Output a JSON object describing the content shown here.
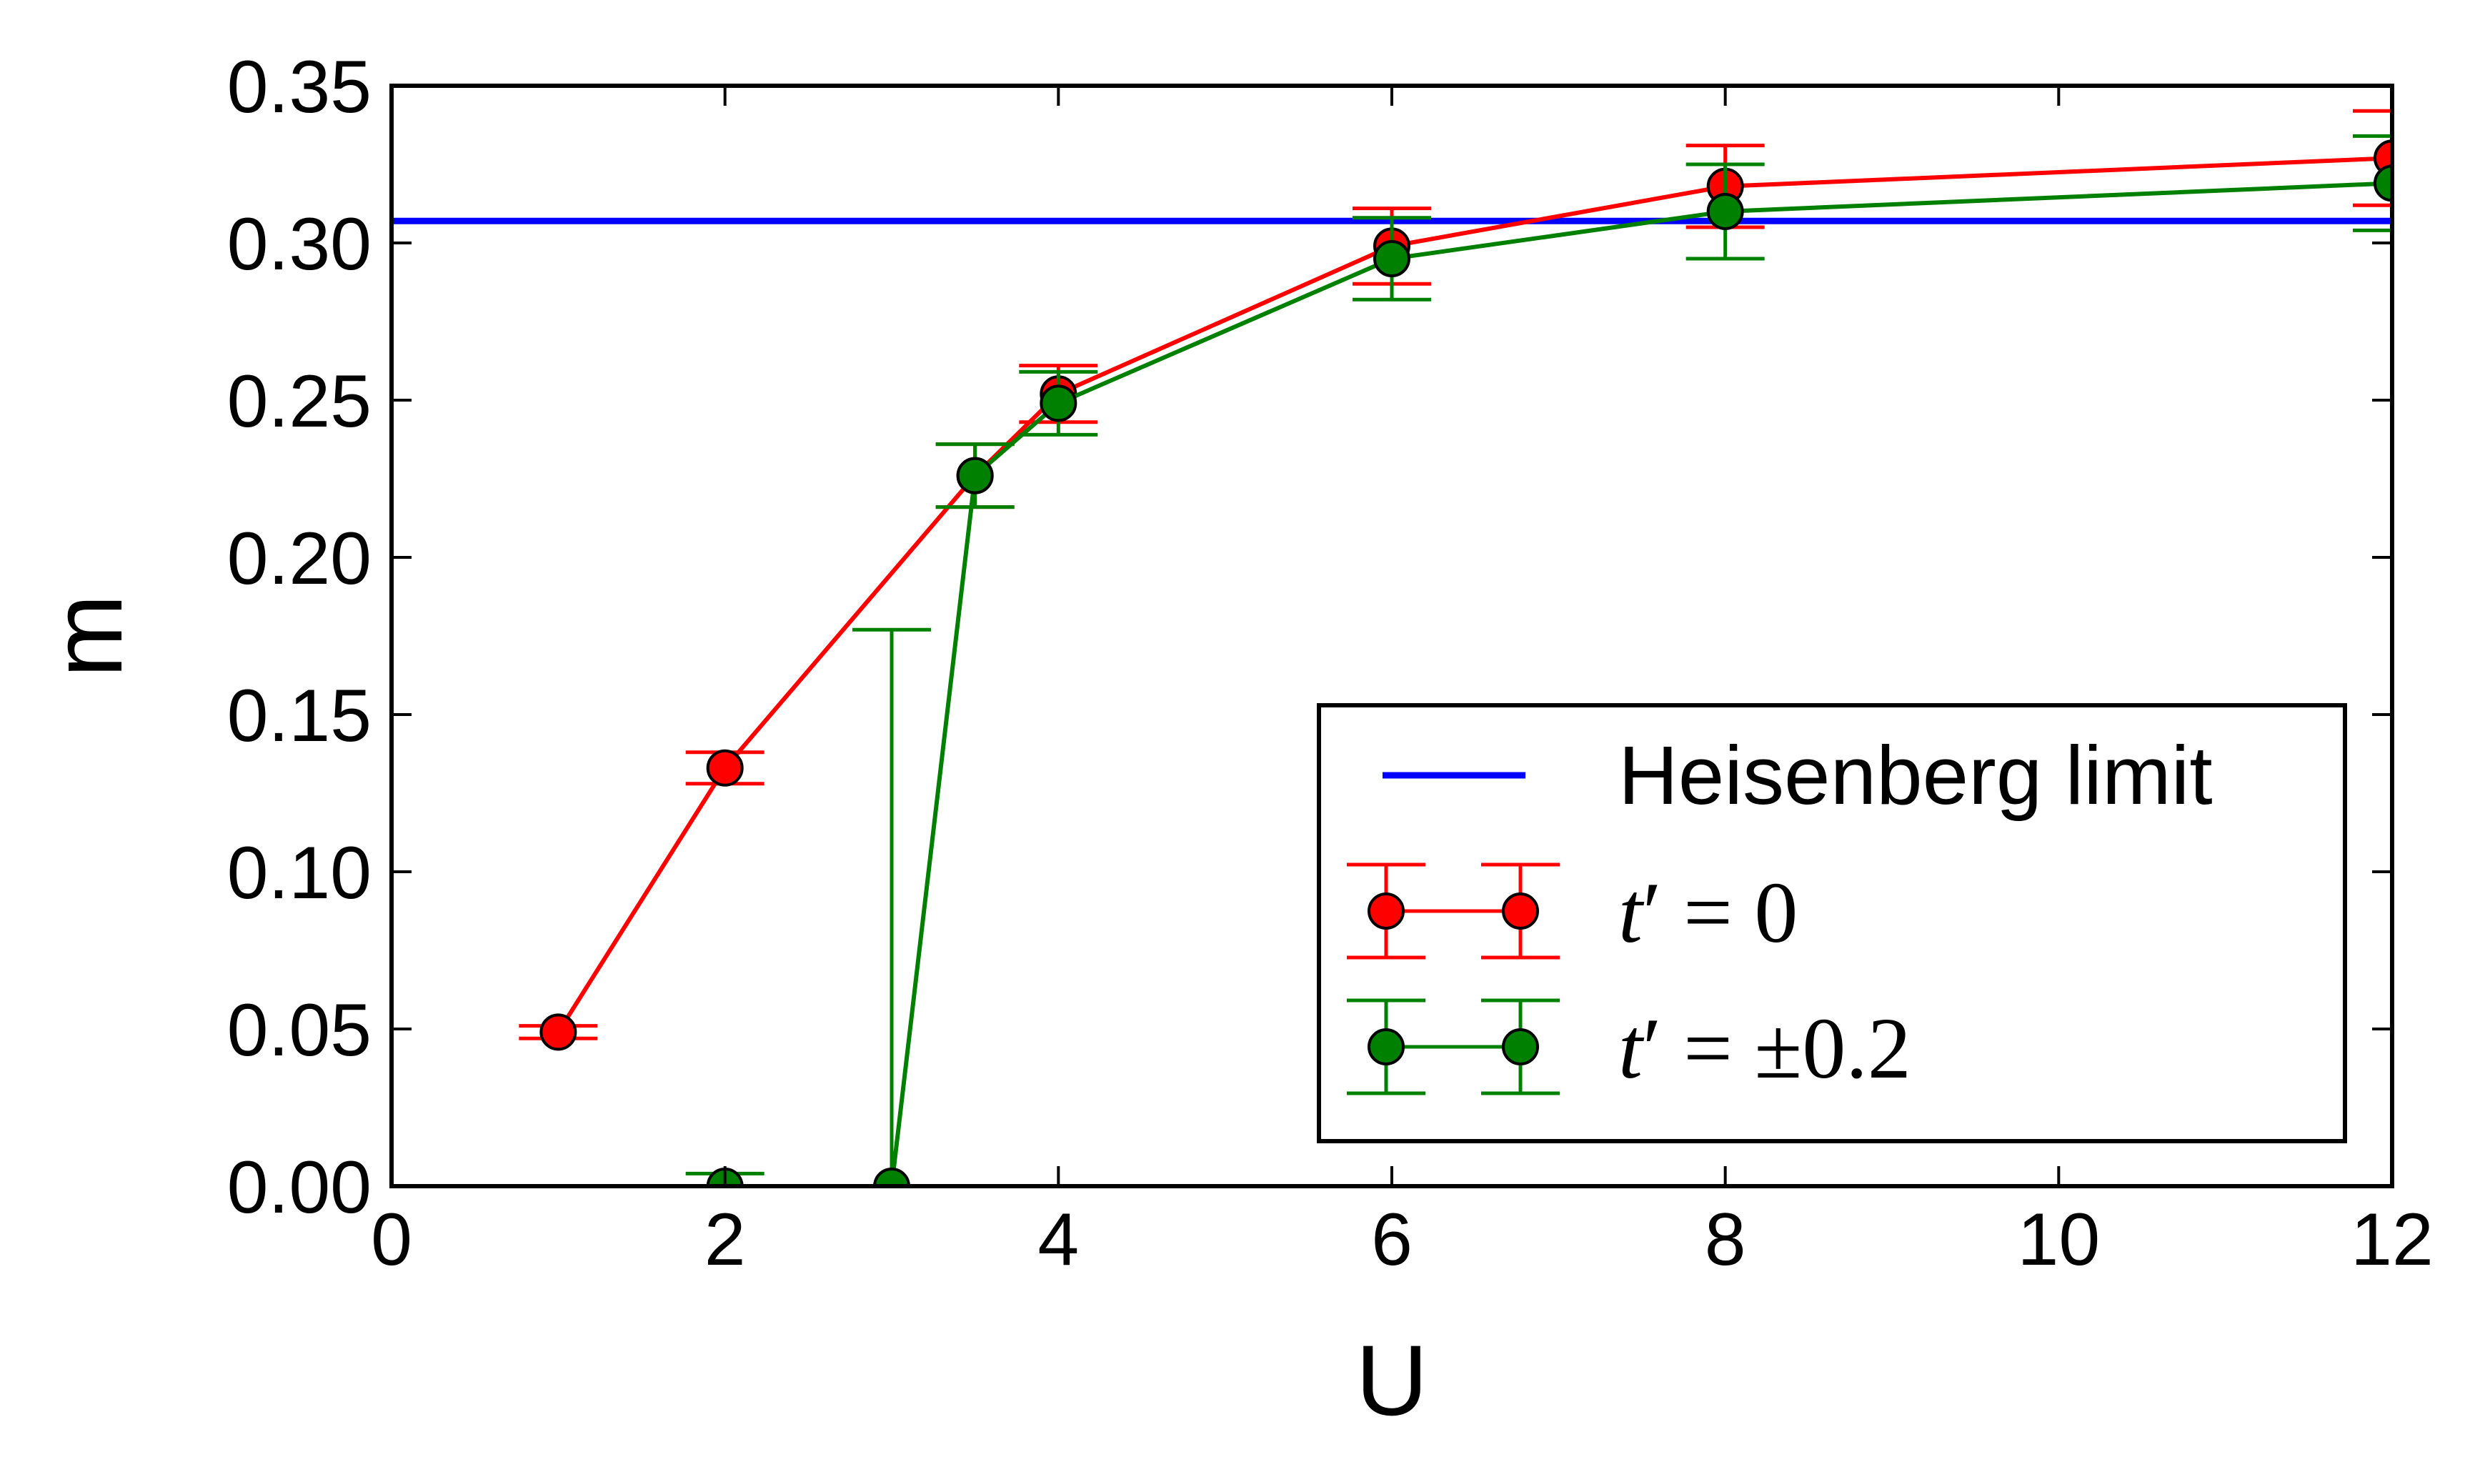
{
  "chart_data": {
    "type": "line",
    "xlabel": "U",
    "ylabel": "m",
    "xlim": [
      0,
      12
    ],
    "ylim": [
      0,
      0.35
    ],
    "x_ticks": [
      "0",
      "2",
      "4",
      "6",
      "8",
      "10",
      "12"
    ],
    "y_ticks": [
      "0.00",
      "0.05",
      "0.10",
      "0.15",
      "0.20",
      "0.25",
      "0.30",
      "0.35"
    ],
    "grid": false,
    "legend_position": "lower-right",
    "hline": {
      "name": "Heisenberg limit",
      "y": 0.307,
      "color": "#0000ff"
    },
    "series": [
      {
        "name": "t′ = 0",
        "color": "#ff0000",
        "x": [
          1,
          2,
          3.5,
          4,
          6,
          8,
          12
        ],
        "y": [
          0.049,
          0.133,
          0.226,
          0.252,
          0.299,
          0.318,
          0.327
        ],
        "err": [
          0.002,
          0.005,
          0.01,
          0.009,
          0.012,
          0.013,
          0.015
        ]
      },
      {
        "name": "t′ = ±0.2",
        "color": "#008000",
        "x": [
          2,
          3,
          3.5,
          4,
          6,
          8,
          12
        ],
        "y": [
          0.0,
          0.0,
          0.226,
          0.249,
          0.295,
          0.31,
          0.319
        ],
        "err": [
          0.004,
          0.177,
          0.01,
          0.01,
          0.013,
          0.015,
          0.015
        ],
        "err_mode": [
          "sym",
          "upper",
          "sym",
          "sym",
          "sym",
          "sym",
          "sym"
        ]
      }
    ]
  },
  "legend": {
    "heisenberg": "Heisenberg limit",
    "t0_prefix": "t",
    "t0_rest": "′ = 0",
    "t02_prefix": "t",
    "t02_rest": "′ = ±0.2"
  }
}
